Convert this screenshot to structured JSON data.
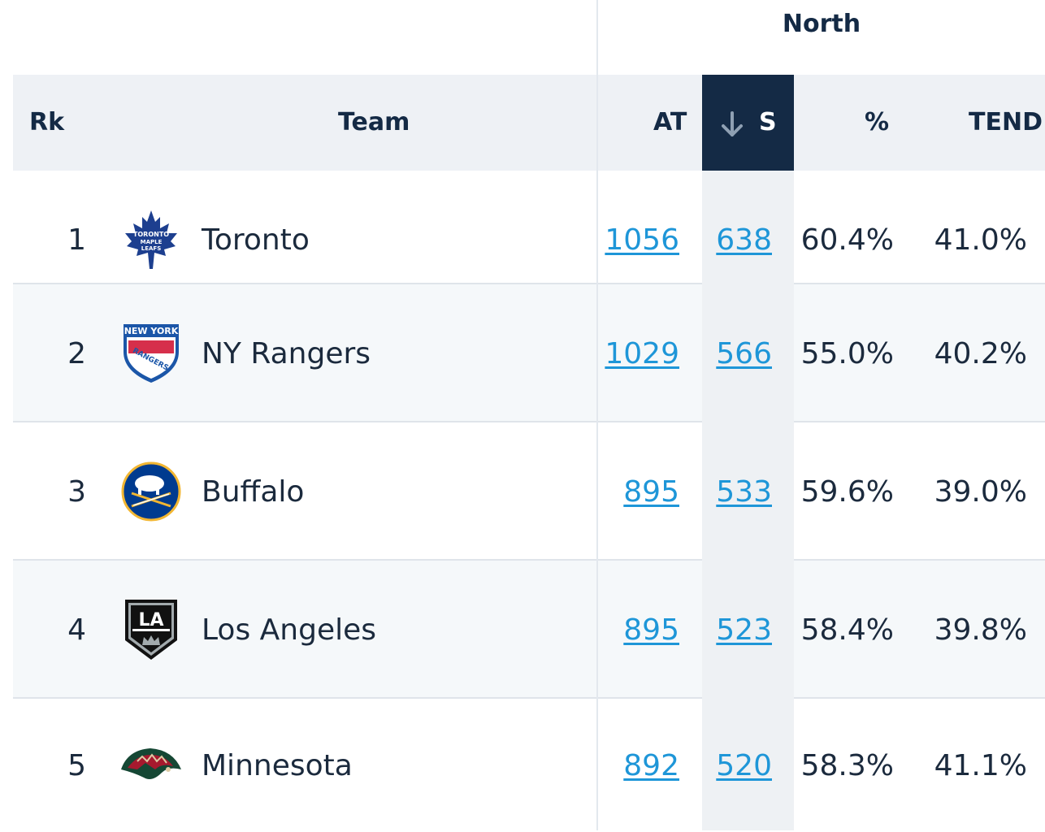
{
  "group_header": "North",
  "columns": {
    "rk": "Rk",
    "team": "Team",
    "at": "AT",
    "s": "S",
    "pct": "%",
    "tend": "TEND"
  },
  "sort": {
    "column": "S",
    "direction": "descending",
    "icon": "arrow-down-icon"
  },
  "rows": [
    {
      "rank": "1",
      "team": "Toronto",
      "logo": "toronto-maple-leafs-logo-icon",
      "at": "1056",
      "s": "638",
      "pct": "60.4%",
      "tend": "41.0%"
    },
    {
      "rank": "2",
      "team": "NY Rangers",
      "logo": "new-york-rangers-logo-icon",
      "at": "1029",
      "s": "566",
      "pct": "55.0%",
      "tend": "40.2%"
    },
    {
      "rank": "3",
      "team": "Buffalo",
      "logo": "buffalo-sabres-logo-icon",
      "at": "895",
      "s": "533",
      "pct": "59.6%",
      "tend": "39.0%"
    },
    {
      "rank": "4",
      "team": "Los Angeles",
      "logo": "los-angeles-kings-logo-icon",
      "at": "895",
      "s": "523",
      "pct": "58.4%",
      "tend": "39.8%"
    },
    {
      "rank": "5",
      "team": "Minnesota",
      "logo": "minnesota-wild-logo-icon",
      "at": "892",
      "s": "520",
      "pct": "58.3%",
      "tend": "41.1%"
    }
  ],
  "logo_text": {
    "toronto": [
      "TORONTO",
      "MAPLE",
      "LEAFS"
    ],
    "rangers": [
      "NEW YORK",
      "RANGERS"
    ],
    "kings": "LA"
  },
  "colors": {
    "header_dark": "#142a45",
    "header_bg": "#eef1f5",
    "link": "#1e96d8",
    "text": "#1b2a3d"
  }
}
